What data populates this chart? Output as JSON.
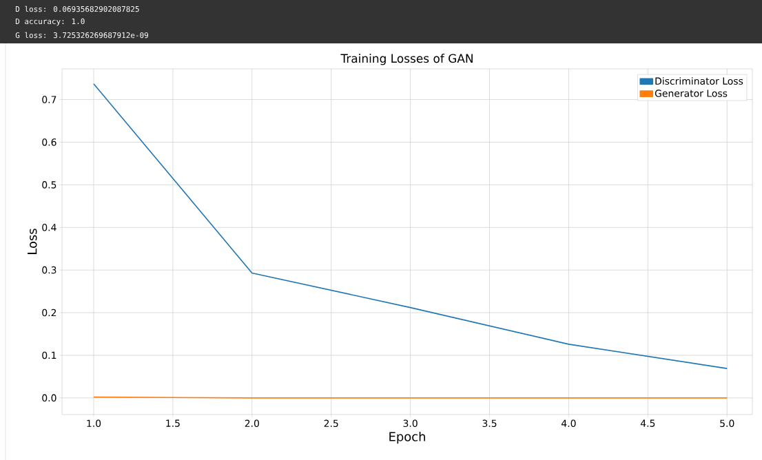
{
  "chart_data": {
    "type": "line",
    "title": "Training Losses of GAN",
    "xlabel": "Epoch",
    "ylabel": "Loss",
    "annotations": [
      "D loss: 0.06935682902087825",
      "D accuracy: 1.0",
      "G loss: 3.725326269687912e-09"
    ],
    "x": [
      1,
      2,
      3,
      4,
      5
    ],
    "series": [
      {
        "name": "Discriminator Loss",
        "color": "#1f77b4",
        "values": [
          0.737,
          0.293,
          0.212,
          0.126,
          0.069
        ]
      },
      {
        "name": "Generator Loss",
        "color": "#ff7f0e",
        "values": [
          0.002,
          0.0,
          0.0,
          0.0,
          0.0
        ]
      }
    ],
    "xlim": [
      0.8,
      5.16
    ],
    "ylim": [
      -0.039,
      0.772
    ],
    "xticks": [
      {
        "value": 1,
        "label": "1.0"
      },
      {
        "value": 1.5,
        "label": "1.5"
      },
      {
        "value": 2,
        "label": "2.0"
      },
      {
        "value": 2.5,
        "label": "2.5"
      },
      {
        "value": 3,
        "label": "3.0"
      },
      {
        "value": 3.5,
        "label": "3.5"
      },
      {
        "value": 4,
        "label": "4.0"
      },
      {
        "value": 4.5,
        "label": "4.5"
      },
      {
        "value": 5,
        "label": "5.0"
      }
    ],
    "yticks": [
      {
        "value": 0,
        "label": "0.0"
      },
      {
        "value": 0.1,
        "label": "0.1"
      },
      {
        "value": 0.2,
        "label": "0.2"
      },
      {
        "value": 0.3,
        "label": "0.3"
      },
      {
        "value": 0.4,
        "label": "0.4"
      },
      {
        "value": 0.5,
        "label": "0.5"
      },
      {
        "value": 0.6,
        "label": "0.6"
      },
      {
        "value": 0.7,
        "label": "0.7"
      }
    ],
    "grid": true,
    "legend": "top right",
    "marker": "none",
    "line_style": "solid"
  }
}
